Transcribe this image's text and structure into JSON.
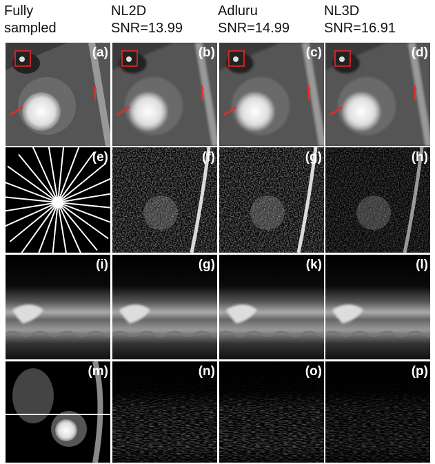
{
  "columns": [
    {
      "header": [
        "Fully",
        "sampled"
      ]
    },
    {
      "header": [
        "NL2D",
        "SNR=13.99"
      ]
    },
    {
      "header": [
        "Adluru",
        "SNR=14.99"
      ]
    },
    {
      "header": [
        "NL3D",
        "SNR=16.91"
      ]
    }
  ],
  "panels": [
    [
      "(a)",
      "(b)",
      "(c)",
      "(d)"
    ],
    [
      "(e)",
      "(f)",
      "(g)",
      "(h)"
    ],
    [
      "(i)",
      "(g)",
      "(k)",
      "(l)"
    ],
    [
      "(m)",
      "(n)",
      "(o)",
      "(p)"
    ]
  ]
}
